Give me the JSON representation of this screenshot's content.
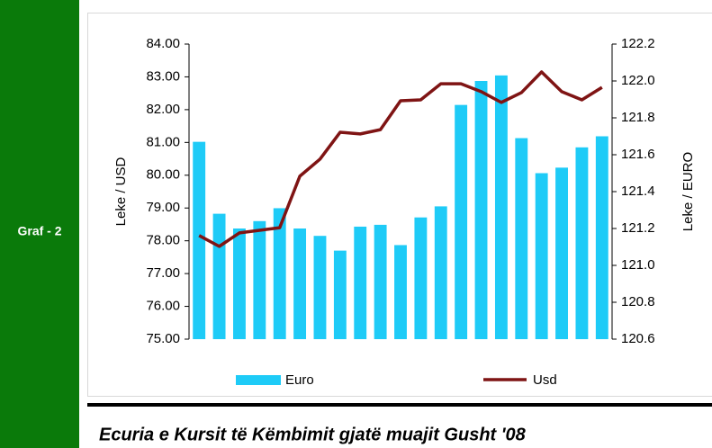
{
  "sidebar": {
    "label": "Graf - 2"
  },
  "caption": "Ecuria e Kursit të Këmbimit gjatë muajit Gusht '08",
  "chart_data": {
    "type": "combo",
    "categories": [
      null,
      null,
      null,
      null,
      null,
      null,
      null,
      null,
      null,
      null,
      null,
      null,
      null,
      null,
      null,
      null,
      null,
      null,
      null,
      null,
      null
    ],
    "ylabel": "Leke / USD",
    "y2label": "Leke / EURO",
    "ylim": [
      75,
      84
    ],
    "yticks": [
      {
        "value": 75,
        "label": "75.00"
      },
      {
        "value": 76,
        "label": "76.00"
      },
      {
        "value": 77,
        "label": "77.00"
      },
      {
        "value": 78,
        "label": "78.00"
      },
      {
        "value": 79,
        "label": "79.00"
      },
      {
        "value": 80,
        "label": "80.00"
      },
      {
        "value": 81,
        "label": "81.00"
      },
      {
        "value": 82,
        "label": "82.00"
      },
      {
        "value": 83,
        "label": "83.00"
      },
      {
        "value": 84,
        "label": "84.00"
      }
    ],
    "y2lim": [
      120.6,
      122.2
    ],
    "y2ticks": [
      120.6,
      120.8,
      {
        "value": 121,
        "label": "121.0"
      },
      121.2,
      121.4,
      121.6,
      121.8,
      {
        "value": 122,
        "label": "122.0"
      },
      122.2
    ],
    "grid": false,
    "series": [
      {
        "name": "Euro",
        "type": "bar",
        "axis": "y2",
        "color": "#1ecbf7",
        "values": [
          121.67,
          121.28,
          121.2,
          121.24,
          121.31,
          121.2,
          121.16,
          121.08,
          121.21,
          121.22,
          121.11,
          121.26,
          121.32,
          121.87,
          122.0,
          122.03,
          121.69,
          121.5,
          121.53,
          121.64,
          121.7
        ]
      },
      {
        "name": "Usd",
        "type": "line",
        "axis": "y",
        "color": "#7f1414",
        "values": [
          78.16,
          77.83,
          78.24,
          78.32,
          78.4,
          79.97,
          80.49,
          81.31,
          81.26,
          81.39,
          82.27,
          82.3,
          82.79,
          82.79,
          82.55,
          82.22,
          82.52,
          83.15,
          82.55,
          82.3,
          82.68
        ]
      }
    ]
  }
}
